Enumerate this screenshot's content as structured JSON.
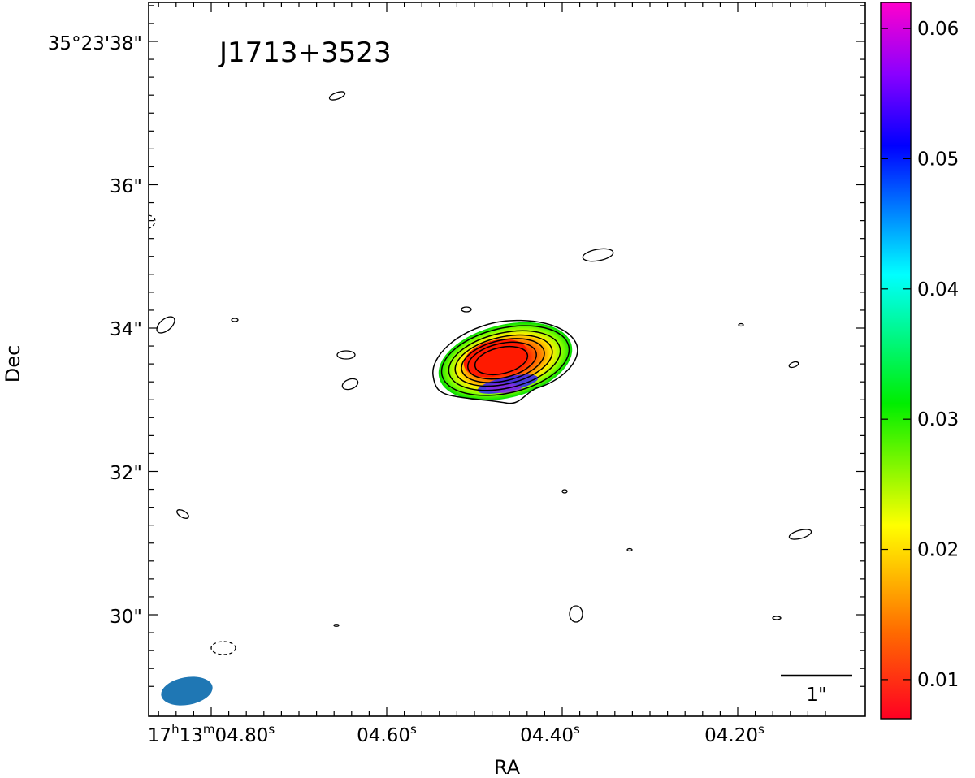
{
  "chart_data": {
    "type": "heatmap",
    "title": "J1713+3523",
    "xlabel": "RA",
    "ylabel": "Dec",
    "x_tick_labels": [
      {
        "main": "17",
        "sup1": "h",
        "mid": "13",
        "sup2": "m",
        "end": "04.80",
        "sup3": "s"
      },
      {
        "main": "04.60",
        "sup3": "s"
      },
      {
        "main": "04.40",
        "sup3": "s"
      },
      {
        "main": "04.20",
        "sup3": "s"
      }
    ],
    "y_tick_labels": [
      "35°23'38\"",
      "36\"",
      "34\"",
      "32\"",
      "30\""
    ],
    "y_ticks_arcsec": [
      38,
      36,
      34,
      32,
      30
    ],
    "x_ticks_seconds": [
      4.8,
      4.6,
      4.4,
      4.2
    ],
    "colorbar": {
      "colormap": "gist_rainbow",
      "range": [
        0.007,
        0.062
      ],
      "tick_values": [
        0.01,
        0.02,
        0.03,
        0.04,
        0.05,
        0.06
      ],
      "tick_labels": [
        "0.01",
        "0.02",
        "0.03",
        "0.04",
        "0.05",
        "0.06"
      ]
    },
    "scale_bar_label": "1\"",
    "beam_color": "#1f77b4",
    "contour_color": "#000000",
    "source_peak": {
      "ra_s": 4.465,
      "dec_arcsec": 33.55
    },
    "grid": false
  }
}
